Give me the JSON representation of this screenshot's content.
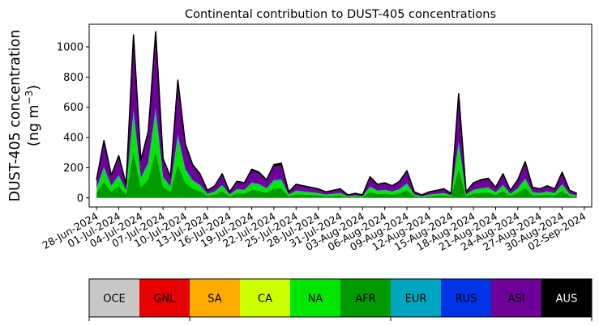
{
  "chart_data": {
    "type": "area",
    "title": "Continental contribution to DUST-405 concentrations",
    "ylabel_line1": "DUST-405 concentration",
    "ylabel_line2_prefix": "(ng m",
    "ylabel_line2_sup": "−3",
    "ylabel_line2_suffix": ")",
    "xlabel": "",
    "stacked": true,
    "x_start": "2024-06-28",
    "x_end": "2024-09-01",
    "xlim": [
      "2024-06-27",
      "2024-09-03"
    ],
    "ylim": [
      -60,
      1150
    ],
    "y_ticks": [
      0,
      200,
      400,
      600,
      800,
      1000
    ],
    "x_tick_labels": [
      "28-Jun-2024",
      "01-Jul-2024",
      "04-Jul-2024",
      "07-Jul-2024",
      "10-Jul-2024",
      "13-Jul-2024",
      "16-Jul-2024",
      "19-Jul-2024",
      "22-Jul-2024",
      "25-Jul-2024",
      "28-Jul-2024",
      "31-Jul-2024",
      "03-Aug-2024",
      "06-Aug-2024",
      "09-Aug-2024",
      "12-Aug-2024",
      "15-Aug-2024",
      "18-Aug-2024",
      "21-Aug-2024",
      "24-Aug-2024",
      "27-Aug-2024",
      "30-Aug-2024",
      "02-Sep-2024"
    ],
    "grid": false,
    "legend": {
      "placement": "bottom",
      "entries": [
        {
          "name": "OCE",
          "color": "#c8c8c8",
          "text_color": "#000000"
        },
        {
          "name": "GNL",
          "color": "#e60000",
          "text_color": "#000000"
        },
        {
          "name": "SA",
          "color": "#ffaa00",
          "text_color": "#000000"
        },
        {
          "name": "CA",
          "color": "#ccff00",
          "text_color": "#000000"
        },
        {
          "name": "NA",
          "color": "#00e600",
          "text_color": "#000000"
        },
        {
          "name": "AFR",
          "color": "#009900",
          "text_color": "#000000"
        },
        {
          "name": "EUR",
          "color": "#00a5c0",
          "text_color": "#000000"
        },
        {
          "name": "RUS",
          "color": "#0033e6",
          "text_color": "#000000"
        },
        {
          "name": "ASI",
          "color": "#6e0099",
          "text_color": "#000000"
        },
        {
          "name": "AUS",
          "color": "#000000",
          "text_color": "#ffffff"
        }
      ]
    },
    "total_keypoints": [
      [
        "2024-06-28",
        120
      ],
      [
        "2024-06-29",
        380
      ],
      [
        "2024-06-30",
        150
      ],
      [
        "2024-07-01",
        280
      ],
      [
        "2024-07-02",
        90
      ],
      [
        "2024-07-03",
        1080
      ],
      [
        "2024-07-04",
        250
      ],
      [
        "2024-07-05",
        440
      ],
      [
        "2024-07-06",
        1100
      ],
      [
        "2024-07-07",
        260
      ],
      [
        "2024-07-08",
        140
      ],
      [
        "2024-07-09",
        780
      ],
      [
        "2024-07-10",
        360
      ],
      [
        "2024-07-11",
        220
      ],
      [
        "2024-07-12",
        160
      ],
      [
        "2024-07-13",
        50
      ],
      [
        "2024-07-14",
        80
      ],
      [
        "2024-07-15",
        160
      ],
      [
        "2024-07-16",
        40
      ],
      [
        "2024-07-17",
        110
      ],
      [
        "2024-07-18",
        100
      ],
      [
        "2024-07-19",
        190
      ],
      [
        "2024-07-20",
        170
      ],
      [
        "2024-07-21",
        120
      ],
      [
        "2024-07-22",
        220
      ],
      [
        "2024-07-23",
        230
      ],
      [
        "2024-07-24",
        40
      ],
      [
        "2024-07-25",
        90
      ],
      [
        "2024-07-26",
        80
      ],
      [
        "2024-07-27",
        70
      ],
      [
        "2024-07-28",
        60
      ],
      [
        "2024-07-29",
        40
      ],
      [
        "2024-07-30",
        50
      ],
      [
        "2024-07-31",
        60
      ],
      [
        "2024-08-01",
        20
      ],
      [
        "2024-08-02",
        30
      ],
      [
        "2024-08-03",
        20
      ],
      [
        "2024-08-04",
        140
      ],
      [
        "2024-08-05",
        90
      ],
      [
        "2024-08-06",
        100
      ],
      [
        "2024-08-07",
        80
      ],
      [
        "2024-08-08",
        110
      ],
      [
        "2024-08-09",
        180
      ],
      [
        "2024-08-10",
        40
      ],
      [
        "2024-08-11",
        20
      ],
      [
        "2024-08-12",
        40
      ],
      [
        "2024-08-13",
        50
      ],
      [
        "2024-08-14",
        60
      ],
      [
        "2024-08-15",
        30
      ],
      [
        "2024-08-16",
        690
      ],
      [
        "2024-08-17",
        40
      ],
      [
        "2024-08-18",
        100
      ],
      [
        "2024-08-19",
        120
      ],
      [
        "2024-08-20",
        130
      ],
      [
        "2024-08-21",
        70
      ],
      [
        "2024-08-22",
        160
      ],
      [
        "2024-08-23",
        50
      ],
      [
        "2024-08-24",
        120
      ],
      [
        "2024-08-25",
        240
      ],
      [
        "2024-08-26",
        70
      ],
      [
        "2024-08-27",
        60
      ],
      [
        "2024-08-28",
        80
      ],
      [
        "2024-08-29",
        60
      ],
      [
        "2024-08-30",
        170
      ],
      [
        "2024-08-31",
        50
      ],
      [
        "2024-09-01",
        30
      ]
    ]
  }
}
